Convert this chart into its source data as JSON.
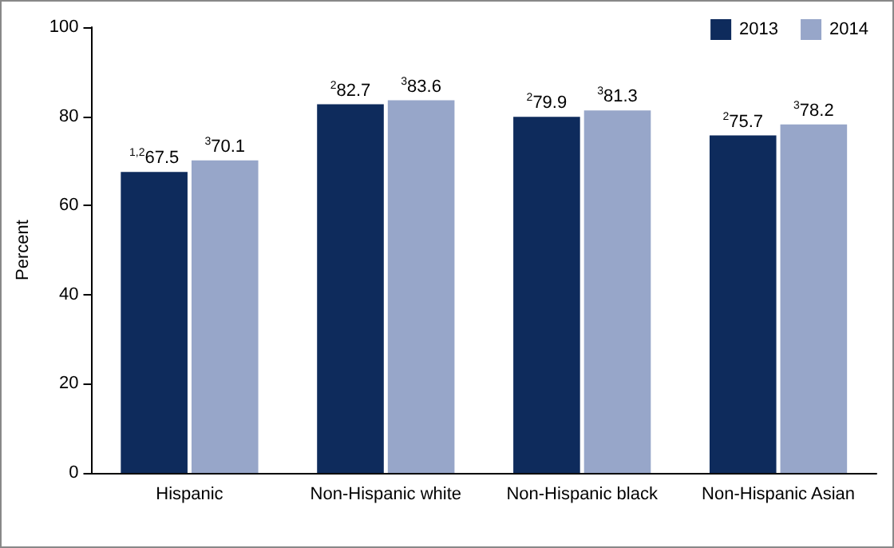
{
  "chart_data": {
    "type": "bar",
    "ylabel": "Percent",
    "categories": [
      "Hispanic",
      "Non-Hispanic white",
      "Non-Hispanic black",
      "Non-Hispanic Asian"
    ],
    "series": [
      {
        "name": "2013",
        "color": "#0e2b5c",
        "values": [
          67.5,
          82.7,
          79.9,
          75.7
        ],
        "value_labels": [
          "$^{1,2}$67.5",
          "$^{2}$82.7",
          "$^{2}$79.9",
          "$^{2}$75.7"
        ]
      },
      {
        "name": "2014",
        "color": "#97a6c9",
        "values": [
          70.1,
          83.6,
          81.3,
          78.2
        ],
        "value_labels": [
          "$^{3}$70.1",
          "$^{3}$83.6",
          "$^{3}$81.3",
          "$^{3}$78.2"
        ]
      }
    ],
    "ylim": [
      0,
      100
    ],
    "yticks": [
      0,
      20,
      40,
      60,
      80,
      100
    ],
    "grid": false,
    "legend": "top right"
  }
}
